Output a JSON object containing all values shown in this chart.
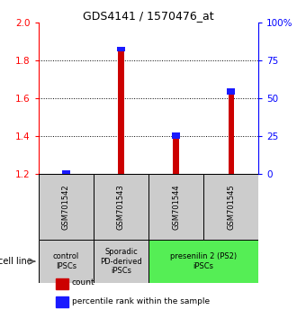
{
  "title": "GDS4141 / 1570476_at",
  "samples": [
    "GSM701542",
    "GSM701543",
    "GSM701544",
    "GSM701545"
  ],
  "count_values": [
    1.222,
    1.87,
    1.42,
    1.65
  ],
  "percentile_values": [
    0.022,
    0.022,
    0.035,
    0.03
  ],
  "ymin": 1.2,
  "ymax": 2.0,
  "yticks_left": [
    1.2,
    1.4,
    1.6,
    1.8,
    2.0
  ],
  "yticks_right": [
    0,
    25,
    50,
    75,
    100
  ],
  "hlines": [
    1.4,
    1.6,
    1.8
  ],
  "bar_color_red": "#cc0000",
  "bar_color_blue": "#1a1aff",
  "groups": [
    {
      "label": "control\nIPSCs",
      "color": "#cccccc",
      "samples": [
        0
      ]
    },
    {
      "label": "Sporadic\nPD-derived\niPSCs",
      "color": "#cccccc",
      "samples": [
        1
      ]
    },
    {
      "label": "presenilin 2 (PS2)\niPSCs",
      "color": "#55ee55",
      "samples": [
        2,
        3
      ]
    }
  ],
  "cell_line_label": "cell line",
  "legend_items": [
    {
      "color": "#cc0000",
      "label": "count"
    },
    {
      "color": "#1a1aff",
      "label": "percentile rank within the sample"
    }
  ],
  "sample_box_color": "#cccccc",
  "figwidth": 3.3,
  "figheight": 3.54,
  "dpi": 100
}
